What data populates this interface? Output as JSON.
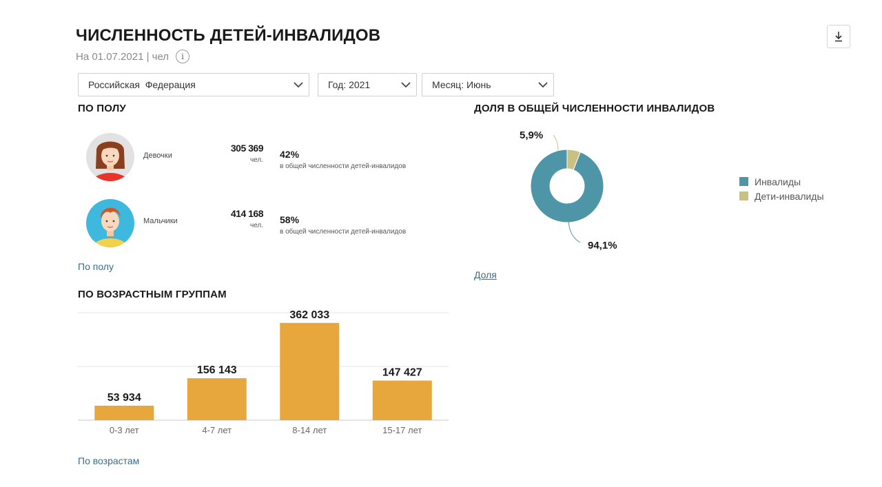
{
  "header": {
    "title": "ЧИСЛЕННОСТЬ ДЕТЕЙ-ИНВАЛИДОВ",
    "subtitle": "На 01.07.2021 | чел",
    "info_icon": "i"
  },
  "filters": {
    "region": "Российская  Федерация",
    "year": "Год: 2021",
    "month": "Месяц: Июнь"
  },
  "by_gender": {
    "title": "ПО ПОЛУ",
    "items": [
      {
        "label": "Девочки",
        "count": "305 369",
        "unit": "чел.",
        "percent": "42%",
        "desc": "в общей численности детей-инвалидов",
        "avatar": "girl-avatar"
      },
      {
        "label": "Мальчики",
        "count": "414 168",
        "unit": "чел.",
        "percent": "58%",
        "desc": "в общей численности детей-инвалидов",
        "avatar": "boy-avatar"
      }
    ],
    "link": "По полу"
  },
  "share": {
    "title": "ДОЛЯ В ОБЩЕЙ ЧИСЛЕННОСТИ ИНВАЛИДОВ",
    "label_small": "5,9%",
    "label_large": "94,1%",
    "legend": [
      {
        "name": "Инвалиды",
        "color": "#4f95a8"
      },
      {
        "name": "Дети-инвалиды",
        "color": "#c9c083"
      }
    ],
    "link": "Доля"
  },
  "by_age": {
    "title": "ПО ВОЗРАСТНЫМ ГРУППАМ",
    "link": "По возрастам"
  },
  "chart_data": [
    {
      "type": "pie",
      "variant": "donut",
      "labels": [
        "Инвалиды",
        "Дети-инвалиды"
      ],
      "values": [
        94.1,
        5.9
      ],
      "data_labels": [
        "94,1%",
        "5,9%"
      ],
      "colors": [
        "#4f95a8",
        "#c9c083"
      ],
      "legend": "right"
    },
    {
      "type": "bar",
      "categories": [
        "0-3 лет",
        "4-7 лет",
        "8-14 лет",
        "15-17 лет"
      ],
      "values": [
        53934,
        156143,
        362033,
        147427
      ],
      "data_labels": [
        "53 934",
        "156 143",
        "362 033",
        "147 427"
      ],
      "ylim": [
        0,
        400000
      ],
      "grid": true,
      "color": "#e8a73c"
    }
  ],
  "icons": {
    "download": "download-icon",
    "chevron": "chevron-down-icon"
  }
}
